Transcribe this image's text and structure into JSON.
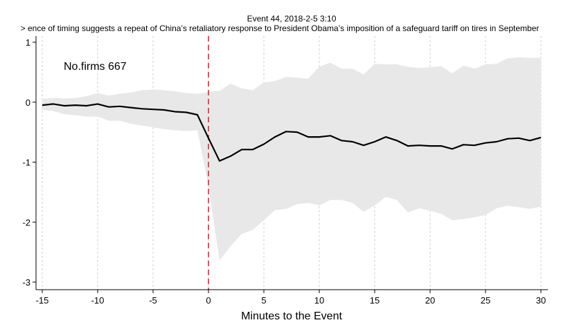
{
  "chart_data": {
    "type": "line",
    "title": "Event 44, 2018-2-5 3:10",
    "subtitle": "> ence of timing suggests a repeat of China’s retaliatory response to President Obama’s imposition of a safeguard tariff on tires in September",
    "xlabel": "Minutes to the Event",
    "ylabel": "",
    "xlim": [
      -15,
      30
    ],
    "ylim": [
      -3,
      1
    ],
    "x_ticks": [
      -15,
      -10,
      -5,
      0,
      5,
      10,
      15,
      20,
      25,
      30
    ],
    "y_ticks": [
      1,
      0,
      -1,
      -2,
      -3
    ],
    "grid": "x-dashed",
    "annotation": "No.firms 667",
    "event_line_x": 0,
    "series": [
      {
        "type": "line",
        "x": [
          -15,
          -14,
          -13,
          -12,
          -11,
          -10,
          -9,
          -8,
          -7,
          -6,
          -5,
          -4,
          -3,
          -2,
          -1,
          0,
          1,
          2,
          3,
          4,
          5,
          6,
          7,
          8,
          9,
          10,
          11,
          12,
          13,
          14,
          15,
          16,
          17,
          18,
          19,
          20,
          21,
          22,
          23,
          24,
          25,
          26,
          27,
          28,
          29,
          30
        ],
        "values": [
          -0.05,
          -0.03,
          -0.06,
          -0.05,
          -0.06,
          -0.03,
          -0.08,
          -0.07,
          -0.09,
          -0.11,
          -0.12,
          -0.13,
          -0.16,
          -0.17,
          -0.21,
          -0.6,
          -0.98,
          -0.9,
          -0.79,
          -0.79,
          -0.7,
          -0.58,
          -0.49,
          -0.5,
          -0.58,
          -0.58,
          -0.56,
          -0.64,
          -0.66,
          -0.72,
          -0.66,
          -0.58,
          -0.64,
          -0.73,
          -0.72,
          -0.73,
          -0.73,
          -0.78,
          -0.71,
          -0.72,
          -0.68,
          -0.66,
          -0.61,
          -0.6,
          -0.64,
          -0.59
        ]
      },
      {
        "type": "band",
        "x": [
          -15,
          -14,
          -13,
          -12,
          -11,
          -10,
          -9,
          -8,
          -7,
          -6,
          -5,
          -4,
          -3,
          -2,
          -1,
          0,
          1,
          2,
          3,
          4,
          5,
          6,
          7,
          8,
          9,
          10,
          11,
          12,
          13,
          14,
          15,
          16,
          17,
          18,
          19,
          20,
          21,
          22,
          23,
          24,
          25,
          26,
          27,
          28,
          29,
          30
        ],
        "upper": [
          0.05,
          0.07,
          0.06,
          0.07,
          0.1,
          0.15,
          0.11,
          0.14,
          0.16,
          0.2,
          0.21,
          0.2,
          0.18,
          0.15,
          0.14,
          0.17,
          0.19,
          0.31,
          0.23,
          0.2,
          0.33,
          0.35,
          0.42,
          0.41,
          0.39,
          0.59,
          0.66,
          0.56,
          0.56,
          0.46,
          0.64,
          0.63,
          0.63,
          0.59,
          0.57,
          0.58,
          0.6,
          0.48,
          0.61,
          0.56,
          0.63,
          0.64,
          0.73,
          0.75,
          0.74,
          0.74
        ],
        "lower": [
          -0.13,
          -0.15,
          -0.2,
          -0.22,
          -0.24,
          -0.24,
          -0.31,
          -0.31,
          -0.36,
          -0.39,
          -0.42,
          -0.45,
          -0.47,
          -0.48,
          -0.47,
          -1.4,
          -2.64,
          -2.4,
          -2.2,
          -2.13,
          -1.97,
          -1.8,
          -1.78,
          -1.7,
          -1.68,
          -1.72,
          -1.63,
          -1.63,
          -1.68,
          -1.83,
          -1.72,
          -1.58,
          -1.63,
          -1.84,
          -1.77,
          -1.81,
          -1.86,
          -1.97,
          -1.95,
          -1.92,
          -1.88,
          -1.77,
          -1.73,
          -1.75,
          -1.78,
          -1.74
        ]
      }
    ]
  }
}
